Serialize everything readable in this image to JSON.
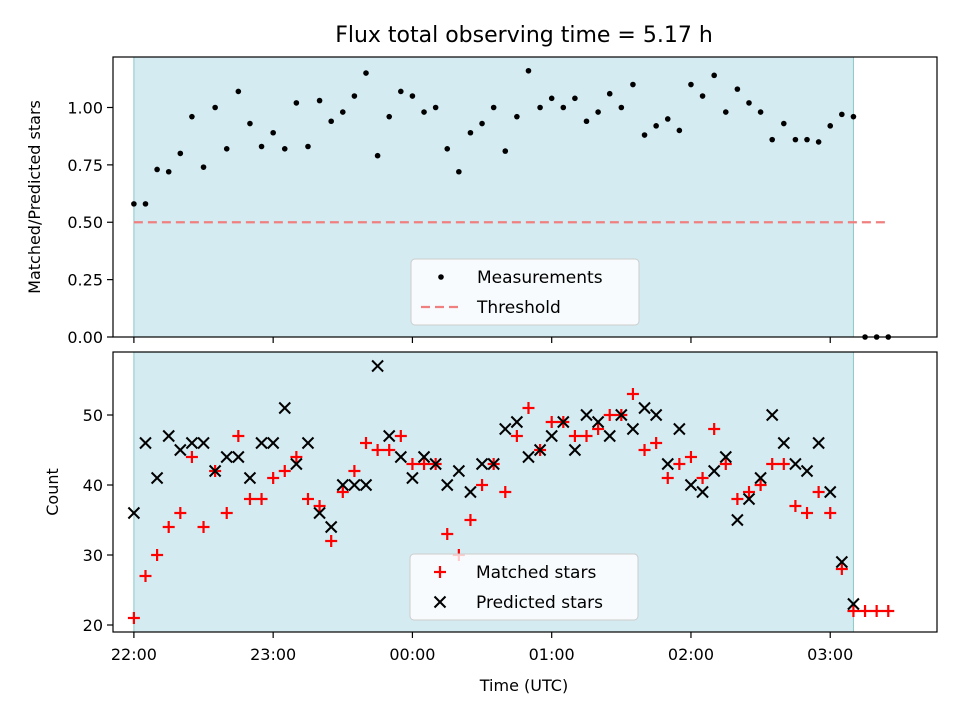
{
  "chart_data": [
    {
      "type": "scatter",
      "title": "Flux total observing time = 5.17 h",
      "xlabel": "",
      "ylabel": "Matched/Predicted stars",
      "xlim": [
        "21:51",
        "03:46"
      ],
      "ylim": [
        0,
        1.22
      ],
      "yticks": [
        "0.00",
        "0.25",
        "0.50",
        "0.75",
        "1.00"
      ],
      "ytick_values": [
        0,
        0.25,
        0.5,
        0.75,
        1.0
      ],
      "xticks": [
        "22:00",
        "23:00",
        "00:00",
        "01:00",
        "02:00",
        "03:00"
      ],
      "shaded_interval": [
        "22:00",
        "03:10"
      ],
      "shade_color": "#add8e6",
      "legend": {
        "position": "bottom-center",
        "entries": [
          "Measurements",
          "Threshold"
        ]
      },
      "series": [
        {
          "name": "Measurements",
          "marker": "dot",
          "color": "#000000",
          "points": [
            [
              "22:00",
              0.58
            ],
            [
              "22:05",
              0.58
            ],
            [
              "22:10",
              0.73
            ],
            [
              "22:15",
              0.72
            ],
            [
              "22:20",
              0.8
            ],
            [
              "22:25",
              0.96
            ],
            [
              "22:30",
              0.74
            ],
            [
              "22:35",
              1.0
            ],
            [
              "22:40",
              0.82
            ],
            [
              "22:45",
              1.07
            ],
            [
              "22:50",
              0.93
            ],
            [
              "22:55",
              0.83
            ],
            [
              "23:00",
              0.89
            ],
            [
              "23:05",
              0.82
            ],
            [
              "23:10",
              1.02
            ],
            [
              "23:15",
              0.83
            ],
            [
              "23:20",
              1.03
            ],
            [
              "23:25",
              0.94
            ],
            [
              "23:30",
              0.98
            ],
            [
              "23:35",
              1.05
            ],
            [
              "23:40",
              1.15
            ],
            [
              "23:45",
              0.79
            ],
            [
              "23:50",
              0.96
            ],
            [
              "23:55",
              1.07
            ],
            [
              "00:00",
              1.05
            ],
            [
              "00:05",
              0.98
            ],
            [
              "00:10",
              1.0
            ],
            [
              "00:15",
              0.82
            ],
            [
              "00:20",
              0.72
            ],
            [
              "00:25",
              0.89
            ],
            [
              "00:30",
              0.93
            ],
            [
              "00:35",
              1.0
            ],
            [
              "00:40",
              0.81
            ],
            [
              "00:45",
              0.96
            ],
            [
              "00:50",
              1.16
            ],
            [
              "00:55",
              1.0
            ],
            [
              "01:00",
              1.04
            ],
            [
              "01:05",
              1.0
            ],
            [
              "01:10",
              1.04
            ],
            [
              "01:15",
              0.94
            ],
            [
              "01:20",
              0.98
            ],
            [
              "01:25",
              1.06
            ],
            [
              "01:30",
              1.0
            ],
            [
              "01:35",
              1.1
            ],
            [
              "01:40",
              0.88
            ],
            [
              "01:45",
              0.92
            ],
            [
              "01:50",
              0.95
            ],
            [
              "01:55",
              0.9
            ],
            [
              "02:00",
              1.1
            ],
            [
              "02:05",
              1.05
            ],
            [
              "02:10",
              1.14
            ],
            [
              "02:15",
              0.98
            ],
            [
              "02:20",
              1.08
            ],
            [
              "02:25",
              1.02
            ],
            [
              "02:30",
              0.98
            ],
            [
              "02:35",
              0.86
            ],
            [
              "02:40",
              0.93
            ],
            [
              "02:45",
              0.86
            ],
            [
              "02:50",
              0.86
            ],
            [
              "02:55",
              0.85
            ],
            [
              "03:00",
              0.92
            ],
            [
              "03:05",
              0.97
            ],
            [
              "03:10",
              0.96
            ],
            [
              "03:15",
              0
            ],
            [
              "03:20",
              0
            ],
            [
              "03:25",
              0
            ]
          ]
        },
        {
          "name": "Threshold",
          "style": "dashed",
          "color": "#f08080",
          "points": [
            [
              "22:00",
              0.5
            ],
            [
              "03:25",
              0.5
            ]
          ]
        }
      ]
    },
    {
      "type": "scatter",
      "title": "",
      "xlabel": "Time (UTC)",
      "ylabel": "Count",
      "xlim": [
        "21:51",
        "03:46"
      ],
      "ylim": [
        19,
        59
      ],
      "yticks": [
        "20",
        "30",
        "40",
        "50"
      ],
      "ytick_values": [
        20,
        30,
        40,
        50
      ],
      "xticks": [
        "22:00",
        "23:00",
        "00:00",
        "01:00",
        "02:00",
        "03:00"
      ],
      "shaded_interval": [
        "22:00",
        "03:10"
      ],
      "shade_color": "#add8e6",
      "legend": {
        "position": "bottom-center",
        "entries": [
          "Matched stars",
          "Predicted stars"
        ]
      },
      "series": [
        {
          "name": "Matched stars",
          "marker": "plus",
          "color": "#ff0000",
          "points": [
            [
              "22:00",
              21
            ],
            [
              "22:05",
              27
            ],
            [
              "22:10",
              30
            ],
            [
              "22:15",
              34
            ],
            [
              "22:20",
              36
            ],
            [
              "22:25",
              44
            ],
            [
              "22:30",
              34
            ],
            [
              "22:35",
              42
            ],
            [
              "22:40",
              36
            ],
            [
              "22:45",
              47
            ],
            [
              "22:50",
              38
            ],
            [
              "22:55",
              38
            ],
            [
              "23:00",
              41
            ],
            [
              "23:05",
              42
            ],
            [
              "23:10",
              44
            ],
            [
              "23:15",
              38
            ],
            [
              "23:20",
              37
            ],
            [
              "23:25",
              32
            ],
            [
              "23:30",
              39
            ],
            [
              "23:35",
              42
            ],
            [
              "23:40",
              46
            ],
            [
              "23:45",
              45
            ],
            [
              "23:50",
              45
            ],
            [
              "23:55",
              47
            ],
            [
              "00:00",
              43
            ],
            [
              "00:05",
              43
            ],
            [
              "00:10",
              43
            ],
            [
              "00:15",
              33
            ],
            [
              "00:20",
              30
            ],
            [
              "00:25",
              35
            ],
            [
              "00:30",
              40
            ],
            [
              "00:35",
              43
            ],
            [
              "00:40",
              39
            ],
            [
              "00:45",
              47
            ],
            [
              "00:50",
              51
            ],
            [
              "00:55",
              45
            ],
            [
              "01:00",
              49
            ],
            [
              "01:05",
              49
            ],
            [
              "01:10",
              47
            ],
            [
              "01:15",
              47
            ],
            [
              "01:20",
              48
            ],
            [
              "01:25",
              50
            ],
            [
              "01:30",
              50
            ],
            [
              "01:35",
              53
            ],
            [
              "01:40",
              45
            ],
            [
              "01:45",
              46
            ],
            [
              "01:50",
              41
            ],
            [
              "01:55",
              43
            ],
            [
              "02:00",
              44
            ],
            [
              "02:05",
              41
            ],
            [
              "02:10",
              48
            ],
            [
              "02:15",
              43
            ],
            [
              "02:20",
              38
            ],
            [
              "02:25",
              39
            ],
            [
              "02:30",
              40
            ],
            [
              "02:35",
              43
            ],
            [
              "02:40",
              43
            ],
            [
              "02:45",
              37
            ],
            [
              "02:50",
              36
            ],
            [
              "02:55",
              39
            ],
            [
              "03:00",
              36
            ],
            [
              "03:05",
              28
            ],
            [
              "03:10",
              22
            ],
            [
              "03:15",
              22
            ],
            [
              "03:20",
              22
            ],
            [
              "03:25",
              22
            ]
          ]
        },
        {
          "name": "Predicted stars",
          "marker": "x",
          "color": "#000000",
          "points": [
            [
              "22:00",
              36
            ],
            [
              "22:05",
              46
            ],
            [
              "22:10",
              41
            ],
            [
              "22:15",
              47
            ],
            [
              "22:20",
              45
            ],
            [
              "22:25",
              46
            ],
            [
              "22:30",
              46
            ],
            [
              "22:35",
              42
            ],
            [
              "22:40",
              44
            ],
            [
              "22:45",
              44
            ],
            [
              "22:50",
              41
            ],
            [
              "22:55",
              46
            ],
            [
              "23:00",
              46
            ],
            [
              "23:05",
              51
            ],
            [
              "23:10",
              43
            ],
            [
              "23:15",
              46
            ],
            [
              "23:20",
              36
            ],
            [
              "23:25",
              34
            ],
            [
              "23:30",
              40
            ],
            [
              "23:35",
              40
            ],
            [
              "23:40",
              40
            ],
            [
              "23:45",
              57
            ],
            [
              "23:50",
              47
            ],
            [
              "23:55",
              44
            ],
            [
              "00:00",
              41
            ],
            [
              "00:05",
              44
            ],
            [
              "00:10",
              43
            ],
            [
              "00:15",
              40
            ],
            [
              "00:20",
              42
            ],
            [
              "00:25",
              39
            ],
            [
              "00:30",
              43
            ],
            [
              "00:35",
              43
            ],
            [
              "00:40",
              48
            ],
            [
              "00:45",
              49
            ],
            [
              "00:50",
              44
            ],
            [
              "00:55",
              45
            ],
            [
              "01:00",
              47
            ],
            [
              "01:05",
              49
            ],
            [
              "01:10",
              45
            ],
            [
              "01:15",
              50
            ],
            [
              "01:20",
              49
            ],
            [
              "01:25",
              47
            ],
            [
              "01:30",
              50
            ],
            [
              "01:35",
              48
            ],
            [
              "01:40",
              51
            ],
            [
              "01:45",
              50
            ],
            [
              "01:50",
              43
            ],
            [
              "01:55",
              48
            ],
            [
              "02:00",
              40
            ],
            [
              "02:05",
              39
            ],
            [
              "02:10",
              42
            ],
            [
              "02:15",
              44
            ],
            [
              "02:20",
              35
            ],
            [
              "02:25",
              38
            ],
            [
              "02:30",
              41
            ],
            [
              "02:35",
              50
            ],
            [
              "02:40",
              46
            ],
            [
              "02:45",
              43
            ],
            [
              "02:50",
              42
            ],
            [
              "02:55",
              46
            ],
            [
              "03:00",
              39
            ],
            [
              "03:05",
              29
            ],
            [
              "03:10",
              23
            ]
          ]
        }
      ]
    }
  ]
}
